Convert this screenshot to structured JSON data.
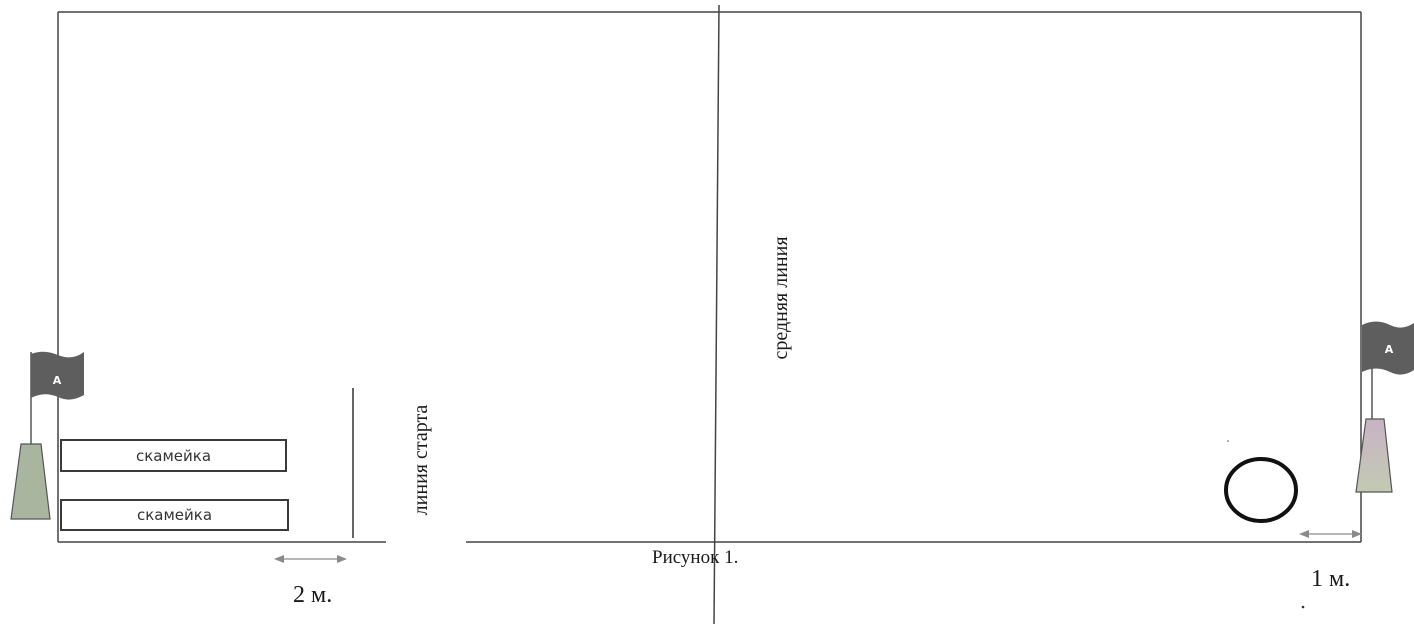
{
  "field": {
    "middle_line_label": "средняя линия",
    "start_line_label": "линия старта"
  },
  "benches": [
    {
      "label": "скамейка"
    },
    {
      "label": "скамейка"
    }
  ],
  "flags": {
    "left_letter": "A",
    "right_letter": "A"
  },
  "measurements": {
    "left": "2 м.",
    "right": "1 м."
  },
  "caption": "Рисунок 1.",
  "colors": {
    "line": "#3a3a3a",
    "flag": "#5e5e5e",
    "cone_left": "#a9b59f",
    "cone_right_top": "#c9b3c6",
    "cone_right_bottom": "#c2cab2",
    "arrow": "#8a8a8a"
  }
}
